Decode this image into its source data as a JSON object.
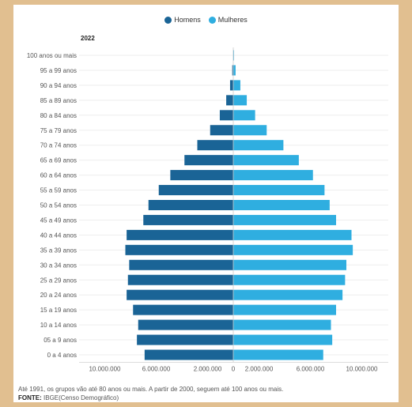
{
  "chart_data": {
    "type": "bar",
    "orientation": "horizontal",
    "layout": "population-pyramid",
    "subtitle": "2022",
    "legend_placement": "top-center",
    "grid": true,
    "categories": [
      "100 anos ou mais",
      "95 a 99 anos",
      "90 a 94 anos",
      "85 a 89 anos",
      "80 a 84 anos",
      "75 a 79 anos",
      "70 a 74 anos",
      "65 a 69 anos",
      "60 a 64 anos",
      "55 a 59 anos",
      "50 a 54 anos",
      "45 a 49 anos",
      "40 a 44 anos",
      "35 a 39 anos",
      "30 a 34 anos",
      "25 a 29 anos",
      "20 a 24 anos",
      "15 a 19 anos",
      "10 a 14 anos",
      "05 a 9 anos",
      "0 a 4 anos"
    ],
    "series": [
      {
        "name": "Homens",
        "color": "#1a6496",
        "values": [
          10000,
          80000,
          250000,
          550000,
          1050000,
          1800000,
          2800000,
          3800000,
          4900000,
          5800000,
          6600000,
          7000000,
          8300000,
          8400000,
          8100000,
          8200000,
          8300000,
          7800000,
          7400000,
          7500000,
          6900000
        ]
      },
      {
        "name": "Mulheres",
        "color": "#2faee0",
        "values": [
          30000,
          180000,
          550000,
          1050000,
          1700000,
          2600000,
          3900000,
          5100000,
          6200000,
          7100000,
          7500000,
          8000000,
          9200000,
          9300000,
          8800000,
          8700000,
          8500000,
          8000000,
          7600000,
          7700000,
          7000000
        ]
      }
    ],
    "xlim": [
      -12000000,
      12000000
    ],
    "xticks": [
      -10000000,
      -6000000,
      -2000000,
      0,
      2000000,
      6000000,
      10000000
    ],
    "xtick_labels": [
      "10.000.000",
      "6.000.000",
      "2.000.000",
      "0",
      "2.000.000",
      "6.000.000",
      "10.000.000"
    ]
  },
  "note": "Até 1991, os grupos vão até 80 anos ou mais. A partir de 2000, seguem até 100 anos ou mais.",
  "source_label": "FONTE:",
  "source_text": " IBGE(Censo Demográfico)"
}
